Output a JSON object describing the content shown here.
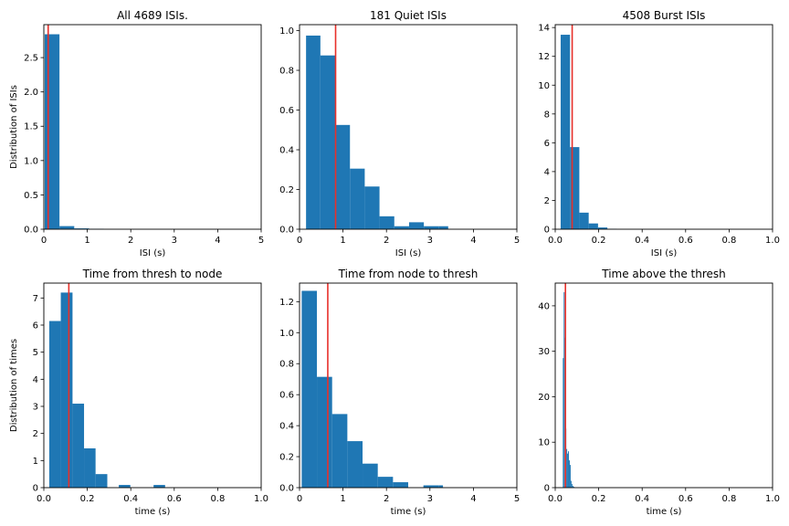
{
  "chart_data": [
    {
      "type": "bar",
      "title": "All 4689 ISIs.",
      "xlabel": "ISI (s)",
      "ylabel": "Distribution of ISIs",
      "xlim": [
        0,
        5
      ],
      "ylim": [
        0,
        2.98
      ],
      "xticks": [
        0,
        1,
        2,
        3,
        4,
        5
      ],
      "yticks": [
        0.0,
        0.5,
        1.0,
        1.5,
        2.0,
        2.5
      ],
      "ytick_labels": [
        "0.0",
        "0.5",
        "1.0",
        "1.5",
        "2.0",
        "2.5"
      ],
      "bin_edges": [
        0.02,
        0.36,
        0.7,
        1.04,
        1.38
      ],
      "values": [
        2.84,
        0.045,
        0.012,
        0.006
      ],
      "vline": 0.1
    },
    {
      "type": "bar",
      "title": "181 Quiet ISIs",
      "xlabel": "ISI (s)",
      "ylabel": "",
      "xlim": [
        0,
        5
      ],
      "ylim": [
        0,
        1.03
      ],
      "xticks": [
        0,
        1,
        2,
        3,
        4,
        5
      ],
      "yticks": [
        0.0,
        0.2,
        0.4,
        0.6,
        0.8,
        1.0
      ],
      "ytick_labels": [
        "0.0",
        "0.2",
        "0.4",
        "0.6",
        "0.8",
        "1.0"
      ],
      "bin_edges": [
        0.15,
        0.48,
        0.82,
        1.16,
        1.5,
        1.84,
        2.18,
        2.52,
        2.86,
        3.2,
        3.42
      ],
      "values": [
        0.975,
        0.875,
        0.525,
        0.305,
        0.215,
        0.065,
        0.015,
        0.035,
        0.015,
        0.015
      ],
      "vline": 0.83
    },
    {
      "type": "bar",
      "title": "4508 Burst ISIs",
      "xlabel": "ISI (s)",
      "ylabel": "",
      "xlim": [
        0,
        1
      ],
      "ylim": [
        0,
        14.2
      ],
      "xticks": [
        0,
        0.2,
        0.4,
        0.6,
        0.8,
        1.0
      ],
      "xtick_labels": [
        "0.0",
        "0.2",
        "0.4",
        "0.6",
        "0.8",
        "1.0"
      ],
      "yticks": [
        0,
        2,
        4,
        6,
        8,
        10,
        12,
        14
      ],
      "bin_edges": [
        0.025,
        0.068,
        0.111,
        0.154,
        0.197,
        0.24,
        0.283
      ],
      "values": [
        13.5,
        5.7,
        1.15,
        0.4,
        0.12,
        0.03
      ],
      "vline": 0.078
    },
    {
      "type": "bar",
      "title": "Time from thresh to node",
      "xlabel": "time (s)",
      "ylabel": "Distribution of times",
      "xlim": [
        0,
        1
      ],
      "ylim": [
        0,
        7.55
      ],
      "xticks": [
        0,
        0.2,
        0.4,
        0.6,
        0.8,
        1.0
      ],
      "xtick_labels": [
        "0.0",
        "0.2",
        "0.4",
        "0.6",
        "0.8",
        "1.0"
      ],
      "yticks": [
        0,
        1,
        2,
        3,
        4,
        5,
        6,
        7
      ],
      "bin_edges": [
        0.025,
        0.078,
        0.132,
        0.185,
        0.238,
        0.292,
        0.345,
        0.398,
        0.452,
        0.505,
        0.558
      ],
      "values": [
        6.15,
        7.2,
        3.1,
        1.45,
        0.5,
        0.0,
        0.1,
        0.0,
        0.0,
        0.1
      ],
      "vline": 0.115
    },
    {
      "type": "bar",
      "title": "Time from node to thresh",
      "xlabel": "time (s)",
      "ylabel": "",
      "xlim": [
        0,
        5
      ],
      "ylim": [
        0,
        1.32
      ],
      "xticks": [
        0,
        1,
        2,
        3,
        4,
        5
      ],
      "yticks": [
        0.0,
        0.2,
        0.4,
        0.6,
        0.8,
        1.0,
        1.2
      ],
      "ytick_labels": [
        "0.0",
        "0.2",
        "0.4",
        "0.6",
        "0.8",
        "1.0",
        "1.2"
      ],
      "bin_edges": [
        0.05,
        0.4,
        0.75,
        1.1,
        1.45,
        1.8,
        2.15,
        2.5,
        2.85,
        3.2,
        3.3
      ],
      "values": [
        1.27,
        0.715,
        0.475,
        0.3,
        0.155,
        0.07,
        0.035,
        0.0,
        0.015,
        0.015
      ],
      "vline": 0.65
    },
    {
      "type": "bar",
      "title": "Time above the thresh",
      "xlabel": "time (s)",
      "ylabel": "",
      "xlim": [
        0,
        1
      ],
      "ylim": [
        0,
        45
      ],
      "xticks": [
        0,
        0.2,
        0.4,
        0.6,
        0.8,
        1.0
      ],
      "xtick_labels": [
        "0.0",
        "0.2",
        "0.4",
        "0.6",
        "0.8",
        "1.0"
      ],
      "yticks": [
        0,
        10,
        20,
        30,
        40
      ],
      "bin_edges": [
        0.035,
        0.039,
        0.043,
        0.047,
        0.051,
        0.055,
        0.059,
        0.063,
        0.067,
        0.071,
        0.075,
        0.079,
        0.083,
        0.087,
        0.091
      ],
      "values": [
        28.5,
        43,
        33,
        13,
        8.5,
        7.5,
        8,
        6,
        5,
        1.5,
        0.8,
        0.4,
        0.2,
        0.1
      ],
      "vline": 0.047
    }
  ],
  "style": {
    "bar_color": "#1f77b4",
    "vline_color": "#e8302a",
    "axis_color": "#000000"
  }
}
